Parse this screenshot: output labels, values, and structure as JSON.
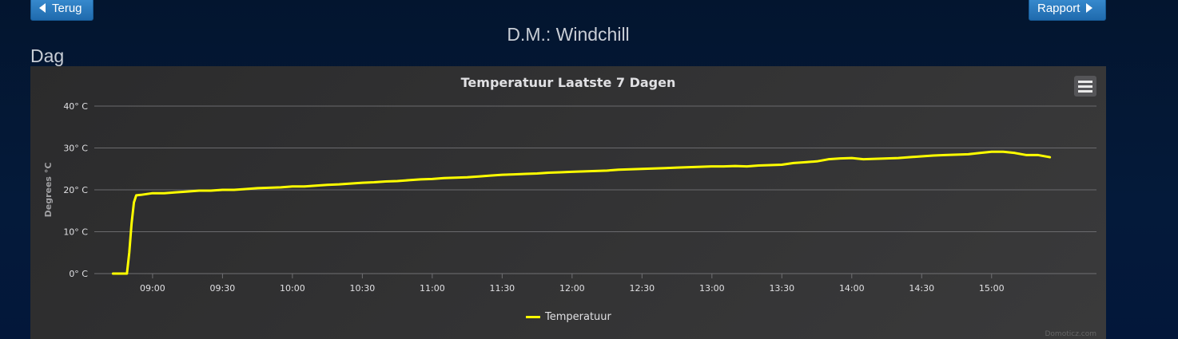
{
  "nav": {
    "back_label": "Terug",
    "report_label": "Rapport"
  },
  "page_title": "D.M.: Windchill",
  "section_title": "Dag",
  "chart_menu_icon": "hamburger-menu-icon",
  "credits": "Domoticz.com",
  "chart_data": {
    "type": "line",
    "title": "Temperatuur Laatste 7 Dagen",
    "ylabel": "Degrees °C",
    "xlabel": "",
    "ylim": [
      0,
      40
    ],
    "yticks": [
      {
        "value": 0,
        "label": "0° C"
      },
      {
        "value": 10,
        "label": "10° C"
      },
      {
        "value": 20,
        "label": "20° C"
      },
      {
        "value": 30,
        "label": "30° C"
      },
      {
        "value": 40,
        "label": "40° C"
      }
    ],
    "xlim": [
      "08:35",
      "15:45"
    ],
    "xticks": [
      "09:00",
      "09:30",
      "10:00",
      "10:30",
      "11:00",
      "11:30",
      "12:00",
      "12:30",
      "13:00",
      "13:30",
      "14:00",
      "14:30",
      "15:00"
    ],
    "grid": true,
    "legend_position": "bottom-center",
    "series": [
      {
        "name": "Temperatuur",
        "color": "#ffff00",
        "x": [
          "08:43",
          "08:49",
          "08:50",
          "08:51",
          "08:52",
          "08:53",
          "08:55",
          "09:00",
          "09:05",
          "09:10",
          "09:15",
          "09:20",
          "09:25",
          "09:30",
          "09:35",
          "09:40",
          "09:45",
          "09:50",
          "09:55",
          "10:00",
          "10:05",
          "10:10",
          "10:15",
          "10:20",
          "10:25",
          "10:30",
          "10:35",
          "10:40",
          "10:45",
          "10:50",
          "10:55",
          "11:00",
          "11:05",
          "11:10",
          "11:15",
          "11:20",
          "11:25",
          "11:30",
          "11:35",
          "11:40",
          "11:45",
          "11:50",
          "11:55",
          "12:00",
          "12:05",
          "12:10",
          "12:15",
          "12:20",
          "12:25",
          "12:30",
          "12:35",
          "12:40",
          "12:45",
          "12:50",
          "12:55",
          "13:00",
          "13:05",
          "13:10",
          "13:15",
          "13:20",
          "13:25",
          "13:30",
          "13:35",
          "13:40",
          "13:45",
          "13:50",
          "13:55",
          "14:00",
          "14:05",
          "14:10",
          "14:15",
          "14:20",
          "14:25",
          "14:30",
          "14:35",
          "14:40",
          "14:45",
          "14:50",
          "14:55",
          "15:00",
          "15:05",
          "15:10",
          "15:15",
          "15:20",
          "15:25"
        ],
        "values": [
          0,
          0,
          5,
          12,
          17,
          18.7,
          18.8,
          19.2,
          19.2,
          19.4,
          19.6,
          19.8,
          19.8,
          20.0,
          20.0,
          20.2,
          20.4,
          20.5,
          20.6,
          20.8,
          20.8,
          21.0,
          21.2,
          21.3,
          21.5,
          21.7,
          21.8,
          22.0,
          22.1,
          22.3,
          22.5,
          22.6,
          22.8,
          22.9,
          23.0,
          23.2,
          23.4,
          23.6,
          23.7,
          23.8,
          23.9,
          24.1,
          24.2,
          24.3,
          24.4,
          24.5,
          24.6,
          24.8,
          24.9,
          25.0,
          25.1,
          25.2,
          25.3,
          25.4,
          25.5,
          25.6,
          25.6,
          25.7,
          25.6,
          25.8,
          25.9,
          26.0,
          26.4,
          26.6,
          26.8,
          27.3,
          27.5,
          27.6,
          27.3,
          27.4,
          27.5,
          27.6,
          27.8,
          28.0,
          28.2,
          28.3,
          28.4,
          28.5,
          28.8,
          29.1,
          29.1,
          28.8,
          28.3,
          28.3,
          27.8
        ]
      }
    ]
  }
}
